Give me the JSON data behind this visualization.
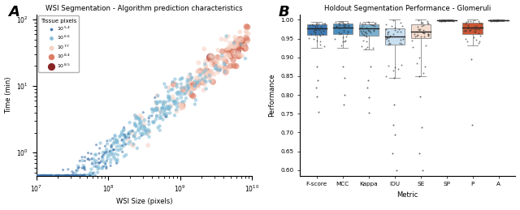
{
  "panel_a": {
    "title": "WSI Segmentation - Algorithm prediction characteristics",
    "xlabel": "WSI Size (pixels)",
    "ylabel": "Time (min)",
    "xlim": [
      10000000.0,
      10000000000.0
    ],
    "ylim": [
      0.45,
      120
    ],
    "legend_title": "Tissue pixels",
    "legend_labels": [
      "10^{5.4}",
      "10^{6.6}",
      "10^{7.7}",
      "10^{8.4}",
      "10^{8.5}"
    ],
    "legend_sizes": [
      6,
      10,
      16,
      24,
      36
    ],
    "legend_colors": [
      "#3a6ea8",
      "#7bb8d4",
      "#f5cfc0",
      "#d97055",
      "#7a0c0c"
    ],
    "color_thresholds": [
      6.0,
      7.2,
      7.9,
      8.5
    ],
    "size_thresholds": [
      6.0,
      7.2,
      7.9,
      8.5
    ],
    "point_sizes": [
      5,
      10,
      18,
      30,
      55
    ],
    "point_colors": [
      "#3a6ea8",
      "#7bb8d4",
      "#f5cfc0",
      "#d97055",
      "#7a0c0c"
    ]
  },
  "panel_b": {
    "title": "Holdout Segmentation Performance - Glomeruli",
    "xlabel": "Metric",
    "ylabel": "Performance",
    "ylim": [
      0.585,
      1.015
    ],
    "yticks": [
      0.6,
      0.65,
      0.7,
      0.75,
      0.8,
      0.85,
      0.9,
      0.95,
      1.0
    ],
    "metrics": [
      "F-score",
      "MCC",
      "Kappa",
      "IOU",
      "SE",
      "SP",
      "P",
      "A"
    ],
    "box_colors": [
      "#3d7ab5",
      "#4a8ec0",
      "#7ab0d0",
      "#c8dff0",
      "#f5ddd0",
      "#f5f5f5",
      "#cc5533",
      "#f5f5f5"
    ],
    "medians": [
      0.978,
      0.98,
      0.977,
      0.955,
      0.968,
      0.9985,
      0.98,
      0.9985
    ],
    "q1": [
      0.96,
      0.962,
      0.958,
      0.935,
      0.952,
      0.998,
      0.963,
      0.998
    ],
    "q3": [
      0.987,
      0.99,
      0.988,
      0.978,
      0.988,
      0.9993,
      0.993,
      0.9993
    ],
    "whisker_low": [
      0.925,
      0.925,
      0.922,
      0.845,
      0.85,
      0.997,
      0.932,
      0.997
    ],
    "whisker_high": [
      0.994,
      0.996,
      0.994,
      1.0,
      1.0,
      1.0,
      1.0,
      1.0
    ],
    "outliers_low": [
      [
        0.875,
        0.84,
        0.82,
        0.795,
        0.755
      ],
      [
        0.875,
        0.845,
        0.8,
        0.775
      ],
      [
        0.875,
        0.84,
        0.82,
        0.793,
        0.753
      ],
      [
        0.845,
        0.775,
        0.72,
        0.695,
        0.645,
        0.6
      ],
      [
        0.85,
        0.795,
        0.715,
        0.645,
        0.6
      ],
      [],
      [
        0.895,
        0.72
      ],
      []
    ]
  }
}
